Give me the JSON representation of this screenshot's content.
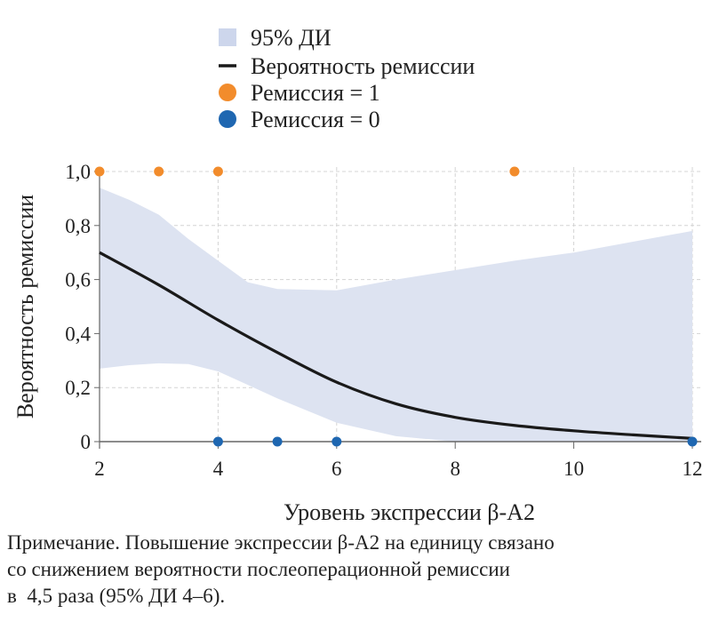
{
  "chart_data": {
    "type": "line",
    "xlabel": "Уровень экспрессии β-А2",
    "ylabel": "Вероятность ремиссии",
    "xlim": [
      2,
      12
    ],
    "ylim": [
      0,
      1
    ],
    "x_ticks": [
      "2",
      "4",
      "6",
      "8",
      "10",
      "12"
    ],
    "x_tick_values": [
      2,
      4,
      6,
      8,
      10,
      12
    ],
    "y_ticks": [
      "0",
      "0,2",
      "0,4",
      "0,6",
      "0,8",
      "1,0"
    ],
    "y_tick_values": [
      0,
      0.2,
      0.4,
      0.6,
      0.8,
      1.0
    ],
    "grid": true,
    "legend": [
      {
        "label": "95% ДИ",
        "kind": "band",
        "color": "#cdd6ec"
      },
      {
        "label": "Вероятность ремиссии",
        "kind": "line",
        "color": "#1a1a1a"
      },
      {
        "label": "Ремиссия = 1",
        "kind": "point",
        "color": "#f28c2c"
      },
      {
        "label": "Ремиссия = 0",
        "kind": "point",
        "color": "#1f67b1"
      }
    ],
    "legend_placement": "top",
    "curve": {
      "name": "Вероятность ремиссии",
      "x": [
        2,
        3,
        4,
        5,
        6,
        7,
        8,
        9,
        10,
        11,
        12
      ],
      "y": [
        0.7,
        0.58,
        0.45,
        0.33,
        0.22,
        0.14,
        0.09,
        0.06,
        0.04,
        0.025,
        0.012
      ]
    },
    "ci_band": {
      "name": "95% ДИ",
      "x": [
        2,
        2.5,
        3,
        3.5,
        4,
        4.5,
        5,
        6,
        7,
        8,
        9,
        10,
        11,
        12
      ],
      "upper": [
        0.94,
        0.895,
        0.84,
        0.75,
        0.67,
        0.59,
        0.565,
        0.56,
        0.6,
        0.635,
        0.67,
        0.7,
        0.74,
        0.78
      ],
      "lower": [
        0.27,
        0.283,
        0.29,
        0.287,
        0.26,
        0.21,
        0.16,
        0.07,
        0.02,
        0.0,
        0.0,
        0.0,
        0.0,
        0.0
      ]
    },
    "points_remission_1": {
      "name": "Ремиссия = 1",
      "x": [
        2,
        3,
        4,
        9
      ],
      "y": [
        1,
        1,
        1,
        1
      ]
    },
    "points_remission_0": {
      "name": "Ремиссия = 0",
      "x": [
        4,
        5,
        6,
        12
      ],
      "y": [
        0,
        0,
        0,
        0
      ]
    }
  },
  "note": {
    "lines": [
      "Примечание. Повышение экспрессии β-А2 на единицу связано",
      "со снижением вероятности послеоперационной ремиссии",
      "в  4,5 раза (95% ДИ 4–6)."
    ]
  }
}
